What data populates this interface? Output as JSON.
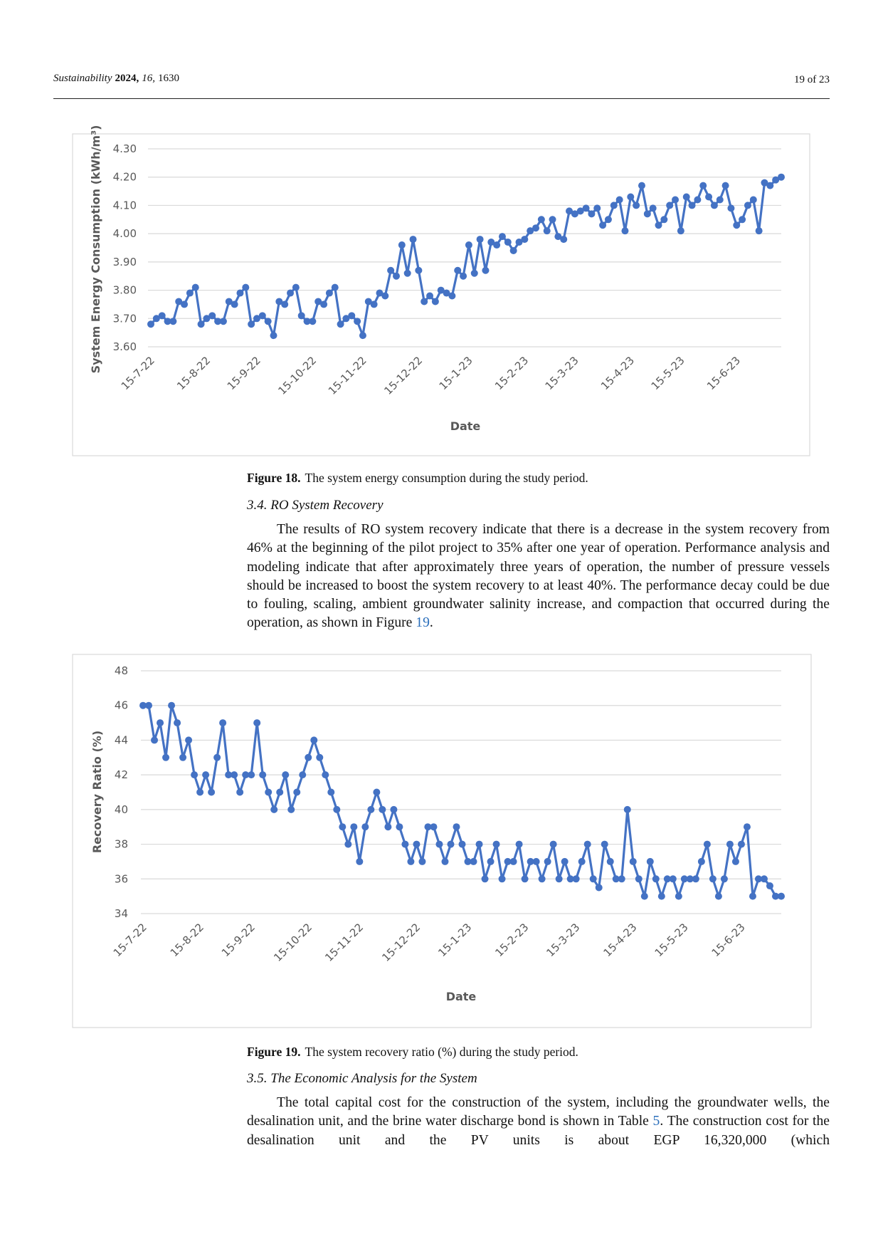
{
  "header": {
    "journal": "Sustainability",
    "year": "2024,",
    "volume": "16,",
    "article": "1630",
    "page": "19 of 23"
  },
  "sections": [
    {
      "heading": "3.4. RO System Recovery",
      "text": "The results of RO system recovery indicate that there is a decrease in the system recovery from 46% at the beginning of the pilot project to 35% after one year of operation. Performance analysis and modeling indicate that after approximately three years of operation, the number of pressure vessels should be increased to boost the system recovery to at least 40%. The performance decay could be due to fouling, scaling, ambient groundwater salinity increase, and compaction that occurred during the operation, as shown in Figure ",
      "link": "19",
      "after": "."
    },
    {
      "heading": "3.5. The Economic Analysis for the System",
      "text": "The total capital cost for the construction of the system, including the groundwater wells, the desalination unit, and the brine water discharge bond is shown in Table ",
      "link": "5",
      "after": ". The construction cost for the desalination unit and the PV units is about EGP 16,320,000 (which"
    }
  ],
  "chart_data": [
    {
      "type": "line",
      "caption_label": "Figure 18.",
      "caption": "The system energy consumption during the study period.",
      "y_label": "System Energy Consumption (kWh/m³)",
      "x_label": "Date",
      "color": "#4472c4",
      "grid": true,
      "categories": [
        "15-7-22",
        null,
        null,
        null,
        null,
        null,
        null,
        null,
        null,
        null,
        "15-8-22",
        null,
        null,
        null,
        null,
        null,
        null,
        null,
        null,
        "15-9-22",
        null,
        null,
        null,
        null,
        null,
        null,
        null,
        null,
        null,
        "15-10-22",
        null,
        null,
        null,
        null,
        null,
        null,
        null,
        null,
        "15-11-22",
        null,
        null,
        null,
        null,
        null,
        null,
        null,
        null,
        null,
        "15-12-22",
        null,
        null,
        null,
        null,
        null,
        null,
        null,
        null,
        "15-1-23",
        null,
        null,
        null,
        null,
        null,
        null,
        null,
        null,
        null,
        "15-2-23",
        null,
        null,
        null,
        null,
        null,
        null,
        null,
        null,
        "15-3-23",
        null,
        null,
        null,
        null,
        null,
        null,
        null,
        null,
        null,
        "15-4-23",
        null,
        null,
        null,
        null,
        null,
        null,
        null,
        null,
        "15-5-23",
        null,
        null,
        null,
        null,
        null,
        null,
        null,
        null,
        null,
        "15-6-23",
        null,
        null,
        null,
        null,
        null,
        null,
        null,
        null
      ],
      "values": [
        3.68,
        3.7,
        3.71,
        3.69,
        3.69,
        3.76,
        3.75,
        3.79,
        3.81,
        3.68,
        3.7,
        3.71,
        3.69,
        3.69,
        3.76,
        3.75,
        3.79,
        3.81,
        3.68,
        3.7,
        3.71,
        3.69,
        3.64,
        3.76,
        3.75,
        3.79,
        3.81,
        3.71,
        3.69,
        3.69,
        3.76,
        3.75,
        3.79,
        3.81,
        3.68,
        3.7,
        3.71,
        3.69,
        3.64,
        3.76,
        3.75,
        3.79,
        3.78,
        3.87,
        3.85,
        3.96,
        3.86,
        3.98,
        3.87,
        3.76,
        3.78,
        3.76,
        3.8,
        3.79,
        3.78,
        3.87,
        3.85,
        3.96,
        3.86,
        3.98,
        3.87,
        3.97,
        3.96,
        3.99,
        3.97,
        3.94,
        3.97,
        3.98,
        4.01,
        4.02,
        4.05,
        4.01,
        4.05,
        3.99,
        3.98,
        4.08,
        4.07,
        4.08,
        4.09,
        4.07,
        4.09,
        4.03,
        4.05,
        4.1,
        4.12,
        4.01,
        4.13,
        4.1,
        4.17,
        4.07,
        4.09,
        4.03,
        4.05,
        4.1,
        4.12,
        4.01,
        4.13,
        4.1,
        4.12,
        4.17,
        4.13,
        4.1,
        4.12,
        4.17,
        4.09,
        4.03,
        4.05,
        4.1,
        4.12,
        4.01,
        4.18,
        4.17,
        4.19,
        4.2
      ],
      "ylim": [
        3.6,
        4.3
      ],
      "yticks": [
        {
          "value": 3.6,
          "label": "3.60"
        },
        {
          "value": 3.7,
          "label": "3.70"
        },
        {
          "value": 3.8,
          "label": "3.80"
        },
        {
          "value": 3.9,
          "label": "3.90"
        },
        {
          "value": 4.0,
          "label": "4.00"
        },
        {
          "value": 4.1,
          "label": "4.10"
        },
        {
          "value": 4.2,
          "label": "4.20"
        },
        {
          "value": 4.3,
          "label": "4.30"
        }
      ]
    },
    {
      "type": "line",
      "caption_label": "Figure 19.",
      "caption": "The system recovery ratio (%) during the study period.",
      "y_label": "Recovery Ratio (%)",
      "x_label": "Date",
      "color": "#4472c4",
      "grid": true,
      "categories": [
        "15-7-22",
        null,
        null,
        null,
        null,
        null,
        null,
        null,
        null,
        null,
        "15-8-22",
        null,
        null,
        null,
        null,
        null,
        null,
        null,
        null,
        "15-9-22",
        null,
        null,
        null,
        null,
        null,
        null,
        null,
        null,
        null,
        "15-10-22",
        null,
        null,
        null,
        null,
        null,
        null,
        null,
        null,
        "15-11-22",
        null,
        null,
        null,
        null,
        null,
        null,
        null,
        null,
        null,
        "15-12-22",
        null,
        null,
        null,
        null,
        null,
        null,
        null,
        null,
        "15-1-23",
        null,
        null,
        null,
        null,
        null,
        null,
        null,
        null,
        null,
        "15-2-23",
        null,
        null,
        null,
        null,
        null,
        null,
        null,
        null,
        "15-3-23",
        null,
        null,
        null,
        null,
        null,
        null,
        null,
        null,
        null,
        "15-4-23",
        null,
        null,
        null,
        null,
        null,
        null,
        null,
        null,
        "15-5-23",
        null,
        null,
        null,
        null,
        null,
        null,
        null,
        null,
        null,
        "15-6-23",
        null,
        null,
        null,
        null,
        null,
        null,
        null
      ],
      "values": [
        46,
        46,
        44,
        45,
        43,
        46,
        45,
        43,
        44,
        42,
        41,
        42,
        41,
        43,
        45,
        42,
        42,
        41,
        42,
        42,
        45,
        42,
        41,
        40,
        41,
        42,
        40,
        41,
        42,
        43,
        44,
        43,
        42,
        41,
        40,
        39,
        38,
        39,
        37,
        39,
        40,
        41,
        40,
        39,
        40,
        39,
        38,
        37,
        38,
        37,
        39,
        39,
        38,
        37,
        38,
        39,
        38,
        37,
        37,
        38,
        36,
        37,
        38,
        36,
        37,
        37,
        38,
        36,
        37,
        37,
        36,
        37,
        38,
        36,
        37,
        36,
        36,
        37,
        38,
        36,
        35.5,
        38,
        37,
        36,
        36,
        40,
        37,
        36,
        35,
        37,
        36,
        35,
        36,
        36,
        35,
        36,
        36,
        36,
        37,
        38,
        36,
        35,
        36,
        38,
        37,
        38,
        39,
        35,
        36,
        36,
        35.6,
        35,
        35
      ],
      "ylim": [
        34,
        48
      ],
      "yticks": [
        34,
        36,
        38,
        40,
        42,
        44,
        46,
        48
      ]
    }
  ]
}
